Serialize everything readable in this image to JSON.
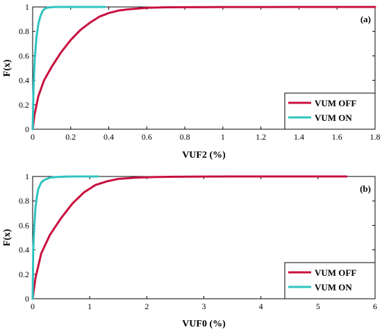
{
  "colors": {
    "vum_off": "#c8103e",
    "vum_on": "#2ec4c0"
  },
  "chart_data": [
    {
      "type": "line",
      "panel_label": "(a)",
      "xlabel": "VUF2 (%)",
      "ylabel": "F(x)",
      "xlim": [
        0,
        1.8
      ],
      "ylim": [
        0,
        1
      ],
      "xticks": [
        0,
        0.2,
        0.4,
        0.6,
        0.8,
        1,
        1.2,
        1.4,
        1.6,
        1.8
      ],
      "xtick_labels": [
        "0",
        "0.2",
        "0.4",
        "0.6",
        "0.8",
        "1",
        "1.2",
        "1.4",
        "1.6",
        "1.8"
      ],
      "yticks": [
        0,
        0.2,
        0.4,
        0.6,
        0.8,
        1
      ],
      "ytick_labels": [
        "0",
        "0.2",
        "0.4",
        "0.6",
        "0.8",
        "1"
      ],
      "grid": false,
      "legend_position": "bottom-right",
      "series": [
        {
          "name": "VUM OFF",
          "color_key": "vum_off",
          "x": [
            0,
            0.01,
            0.03,
            0.06,
            0.1,
            0.15,
            0.2,
            0.25,
            0.3,
            0.35,
            0.4,
            0.45,
            0.5,
            0.6,
            0.7,
            0.8,
            1.0,
            1.2,
            1.4,
            1.6,
            1.8
          ],
          "y": [
            0,
            0.12,
            0.27,
            0.4,
            0.51,
            0.63,
            0.73,
            0.81,
            0.87,
            0.92,
            0.95,
            0.97,
            0.98,
            0.993,
            0.997,
            0.998,
            0.999,
            0.999,
            1.0,
            1.0,
            1.0
          ]
        },
        {
          "name": "VUM ON",
          "color_key": "vum_on",
          "x": [
            0,
            0.005,
            0.01,
            0.02,
            0.03,
            0.04,
            0.05,
            0.06,
            0.07,
            0.08,
            0.1,
            0.12,
            0.2,
            0.3,
            0.38
          ],
          "y": [
            0,
            0.35,
            0.55,
            0.75,
            0.86,
            0.92,
            0.96,
            0.98,
            0.99,
            0.995,
            0.998,
            1.0,
            1.0,
            1.0,
            1.0
          ]
        }
      ]
    },
    {
      "type": "line",
      "panel_label": "(b)",
      "xlabel": "VUF0 (%)",
      "ylabel": "F(x)",
      "xlim": [
        0,
        6
      ],
      "ylim": [
        0,
        1
      ],
      "xticks": [
        0,
        1,
        2,
        3,
        4,
        5,
        6
      ],
      "xtick_labels": [
        "0",
        "1",
        "2",
        "3",
        "4",
        "5",
        "6"
      ],
      "yticks": [
        0,
        0.2,
        0.4,
        0.6,
        0.8,
        1
      ],
      "ytick_labels": [
        "0",
        "0.2",
        "0.4",
        "0.6",
        "0.8",
        "1"
      ],
      "grid": false,
      "legend_position": "bottom-right",
      "series": [
        {
          "name": "VUM OFF",
          "color_key": "vum_off",
          "x": [
            0,
            0.05,
            0.15,
            0.3,
            0.5,
            0.7,
            0.9,
            1.1,
            1.3,
            1.5,
            1.8,
            2.1,
            2.5,
            3.0,
            3.5,
            4.0,
            4.5,
            5.0,
            5.5
          ],
          "y": [
            0,
            0.17,
            0.37,
            0.52,
            0.66,
            0.78,
            0.87,
            0.93,
            0.96,
            0.98,
            0.99,
            0.995,
            0.998,
            0.999,
            1.0,
            1.0,
            1.0,
            1.0,
            1.0
          ]
        },
        {
          "name": "VUM ON",
          "color_key": "vum_on",
          "x": [
            0,
            0.01,
            0.03,
            0.05,
            0.08,
            0.1,
            0.15,
            0.2,
            0.3,
            0.4,
            0.6,
            0.8,
            1.15
          ],
          "y": [
            0,
            0.4,
            0.6,
            0.75,
            0.85,
            0.9,
            0.95,
            0.97,
            0.99,
            0.995,
            0.999,
            1.0,
            1.0
          ]
        }
      ]
    }
  ]
}
